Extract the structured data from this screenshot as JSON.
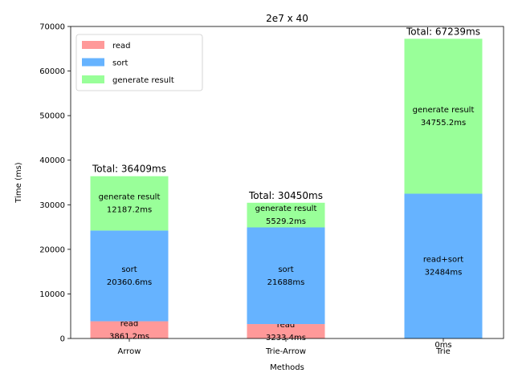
{
  "chart_data": {
    "type": "bar",
    "stacked": true,
    "title": "2e7 x 40",
    "xlabel": "Methods",
    "ylabel": "Time (ms)",
    "ylim": [
      0,
      70000
    ],
    "yticks": [
      0,
      10000,
      20000,
      30000,
      40000,
      50000,
      60000,
      70000
    ],
    "categories": [
      "Arrow",
      "Trie-Arrow",
      "Trie"
    ],
    "series": [
      {
        "name": "read",
        "color": "#ff9999",
        "values": [
          3861.2,
          3233.4,
          0
        ],
        "labels": [
          "read\n3861.2ms",
          "read\n3233.4ms",
          "0ms"
        ]
      },
      {
        "name": "sort",
        "color": "#66b3ff",
        "values": [
          20360.6,
          21688,
          32484
        ],
        "labels": [
          "sort\n20360.6ms",
          "sort\n21688ms",
          "read+sort\n32484ms"
        ]
      },
      {
        "name": "generate result",
        "color": "#99ff99",
        "values": [
          12187.2,
          5529.2,
          34755.2
        ],
        "labels": [
          "generate result\n12187.2ms",
          "generate result\n5529.2ms",
          "generate result\n34755.2ms"
        ]
      }
    ],
    "totals": [
      "Total: 36409ms",
      "Total: 30450ms",
      "Total: 67239ms"
    ],
    "legend": {
      "placement": "top-left"
    },
    "grid": false
  }
}
